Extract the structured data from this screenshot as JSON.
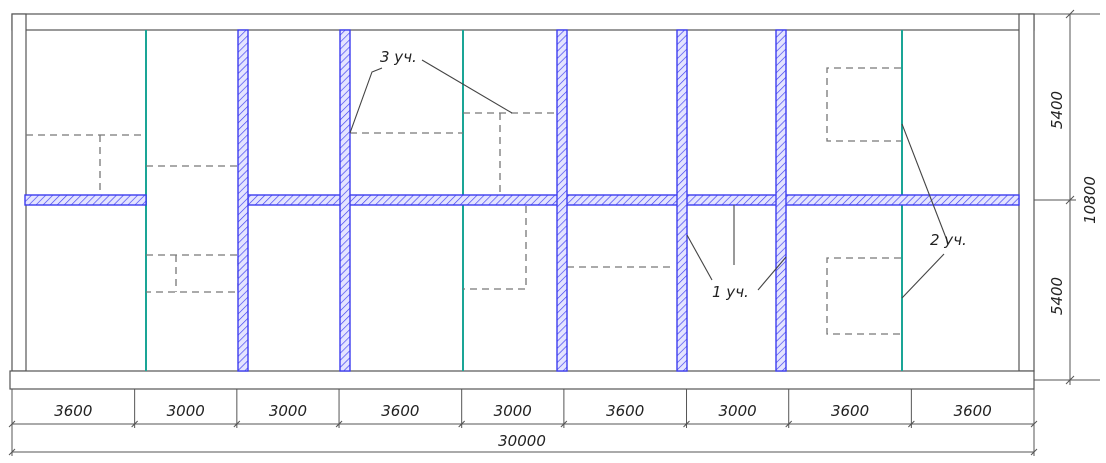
{
  "drawing": {
    "total_width_mm": 30000,
    "total_depth_mm": 10800,
    "bays_mm": [
      3600,
      3000,
      3000,
      3600,
      3000,
      3600,
      3000,
      3600,
      3600
    ],
    "halves_mm": [
      5400,
      5400
    ],
    "bay_labels": [
      "3600",
      "3000",
      "3000",
      "3600",
      "3000",
      "3600",
      "3000",
      "3600",
      "3600"
    ],
    "total_width_label": "30000",
    "total_depth_label": "10800",
    "half_labels": [
      "5400",
      "5400"
    ],
    "section_labels": {
      "s1": "1 уч.",
      "s2": "2 уч.",
      "s3": "3 уч."
    }
  },
  "colors": {
    "outline": "#555555",
    "beam": "#3d3df0",
    "beam_fill": "#cfcfff",
    "hatch": "#3d3df0",
    "teal": "#1aa596",
    "dashed": "#777777"
  }
}
